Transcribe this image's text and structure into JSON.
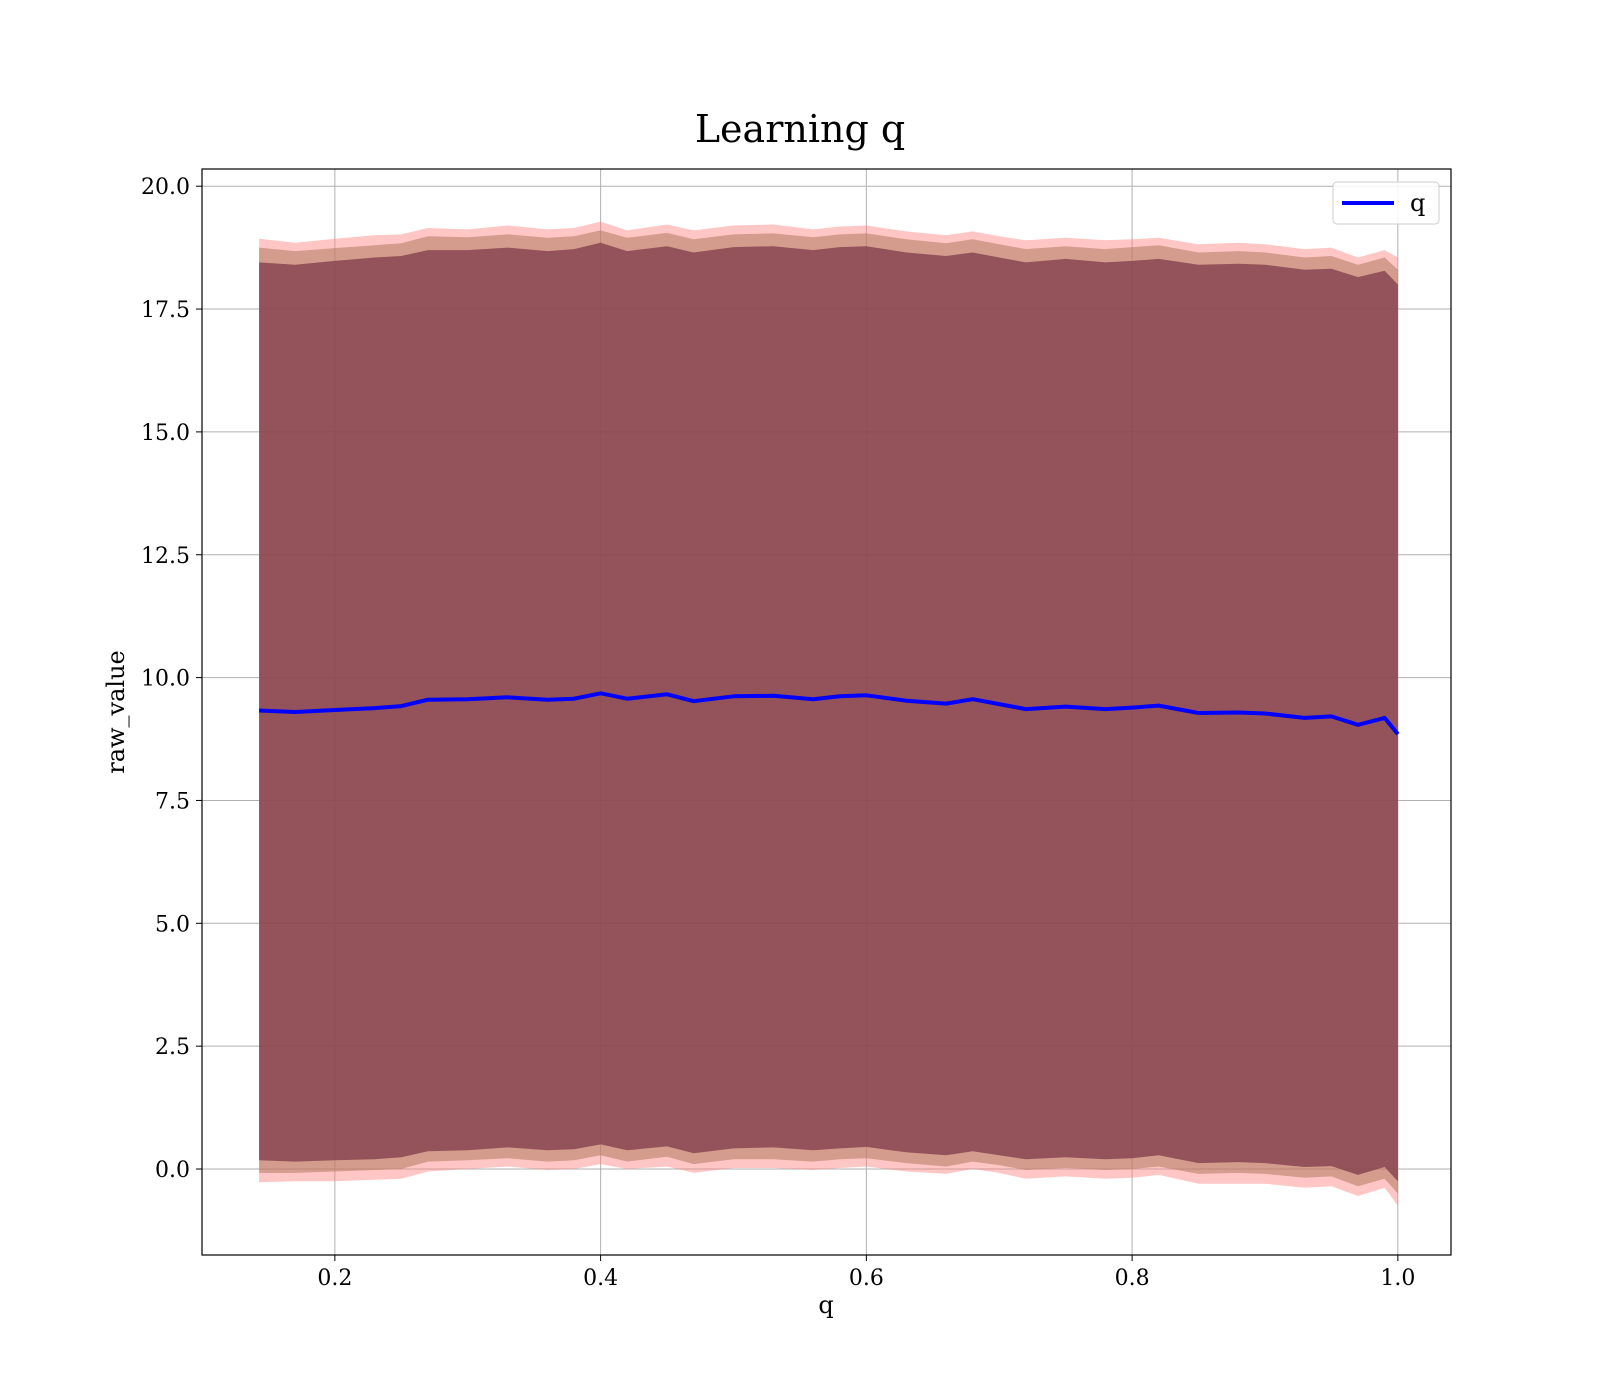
{
  "chart_data": {
    "type": "line",
    "title": "Learning q",
    "xlabel": "q",
    "ylabel": "raw_value",
    "xlim": [
      0.1,
      1.04
    ],
    "ylim": [
      -1.75,
      20.35
    ],
    "xticks": [
      0.2,
      0.4,
      0.6,
      0.8,
      1.0
    ],
    "xtick_labels": [
      "0.2",
      "0.4",
      "0.6",
      "0.8",
      "1.0"
    ],
    "yticks": [
      0.0,
      2.5,
      5.0,
      7.5,
      10.0,
      12.5,
      15.0,
      17.5,
      20.0
    ],
    "ytick_labels": [
      "0.0",
      "2.5",
      "5.0",
      "7.5",
      "10.0",
      "12.5",
      "15.0",
      "17.5",
      "20.0"
    ],
    "grid": true,
    "legend": {
      "position": "top-right",
      "entries": [
        "q"
      ]
    },
    "x": [
      0.143,
      0.17,
      0.2,
      0.23,
      0.25,
      0.27,
      0.3,
      0.33,
      0.36,
      0.38,
      0.4,
      0.42,
      0.45,
      0.47,
      0.5,
      0.53,
      0.56,
      0.58,
      0.6,
      0.63,
      0.66,
      0.68,
      0.7,
      0.72,
      0.75,
      0.78,
      0.8,
      0.82,
      0.85,
      0.88,
      0.9,
      0.93,
      0.95,
      0.97,
      0.99,
      1.0
    ],
    "series": [
      {
        "name": "q",
        "color": "#0000ff",
        "values": [
          9.33,
          9.3,
          9.34,
          9.38,
          9.42,
          9.55,
          9.56,
          9.6,
          9.55,
          9.57,
          9.68,
          9.57,
          9.66,
          9.52,
          9.62,
          9.63,
          9.56,
          9.62,
          9.64,
          9.53,
          9.47,
          9.56,
          9.46,
          9.36,
          9.41,
          9.36,
          9.39,
          9.43,
          9.28,
          9.29,
          9.27,
          9.18,
          9.21,
          9.04,
          9.18,
          8.85
        ]
      }
    ],
    "bands": [
      {
        "color": "#ff8080",
        "opacity": 0.45,
        "upper": [
          18.93,
          18.85,
          18.93,
          19.0,
          19.02,
          19.15,
          19.12,
          19.2,
          19.12,
          19.15,
          19.28,
          19.1,
          19.22,
          19.1,
          19.2,
          19.22,
          19.12,
          19.18,
          19.2,
          19.08,
          19.0,
          19.08,
          18.98,
          18.9,
          18.95,
          18.9,
          18.92,
          18.95,
          18.82,
          18.85,
          18.82,
          18.72,
          18.75,
          18.55,
          18.7,
          18.55
        ],
        "lower": [
          -0.27,
          -0.25,
          -0.25,
          -0.22,
          -0.2,
          -0.05,
          0.0,
          0.05,
          -0.02,
          0.0,
          0.1,
          0.0,
          0.05,
          -0.08,
          0.02,
          0.02,
          -0.02,
          0.02,
          0.05,
          -0.05,
          -0.1,
          0.0,
          -0.08,
          -0.2,
          -0.15,
          -0.2,
          -0.18,
          -0.12,
          -0.3,
          -0.3,
          -0.3,
          -0.38,
          -0.35,
          -0.55,
          -0.38,
          -0.75
        ]
      },
      {
        "color": "#b07a5c",
        "opacity": 0.55,
        "upper": [
          18.75,
          18.68,
          18.74,
          18.8,
          18.84,
          18.98,
          18.96,
          19.02,
          18.95,
          18.98,
          19.1,
          18.95,
          19.05,
          18.92,
          19.02,
          19.04,
          18.96,
          19.02,
          19.04,
          18.92,
          18.84,
          18.92,
          18.82,
          18.72,
          18.78,
          18.72,
          18.76,
          18.8,
          18.65,
          18.68,
          18.65,
          18.55,
          18.58,
          18.4,
          18.55,
          18.3
        ],
        "lower": [
          -0.08,
          -0.08,
          -0.05,
          -0.02,
          0.0,
          0.15,
          0.18,
          0.22,
          0.15,
          0.18,
          0.28,
          0.15,
          0.25,
          0.1,
          0.2,
          0.2,
          0.15,
          0.2,
          0.22,
          0.12,
          0.05,
          0.15,
          0.08,
          -0.02,
          0.02,
          -0.02,
          0.0,
          0.05,
          -0.1,
          -0.08,
          -0.1,
          -0.18,
          -0.15,
          -0.35,
          -0.2,
          -0.5
        ]
      },
      {
        "color": "#7c3646",
        "opacity": 0.72,
        "upper": [
          18.45,
          18.4,
          18.48,
          18.55,
          18.58,
          18.7,
          18.7,
          18.75,
          18.68,
          18.72,
          18.85,
          18.68,
          18.78,
          18.65,
          18.76,
          18.78,
          18.7,
          18.76,
          18.78,
          18.65,
          18.58,
          18.65,
          18.55,
          18.45,
          18.52,
          18.45,
          18.48,
          18.52,
          18.4,
          18.42,
          18.4,
          18.3,
          18.32,
          18.15,
          18.28,
          18.0
        ],
        "lower": [
          0.18,
          0.15,
          0.18,
          0.2,
          0.24,
          0.36,
          0.38,
          0.44,
          0.38,
          0.4,
          0.5,
          0.38,
          0.46,
          0.32,
          0.42,
          0.44,
          0.38,
          0.42,
          0.45,
          0.34,
          0.28,
          0.36,
          0.28,
          0.2,
          0.24,
          0.2,
          0.22,
          0.28,
          0.12,
          0.14,
          0.12,
          0.04,
          0.06,
          -0.12,
          0.04,
          -0.25
        ]
      }
    ]
  }
}
